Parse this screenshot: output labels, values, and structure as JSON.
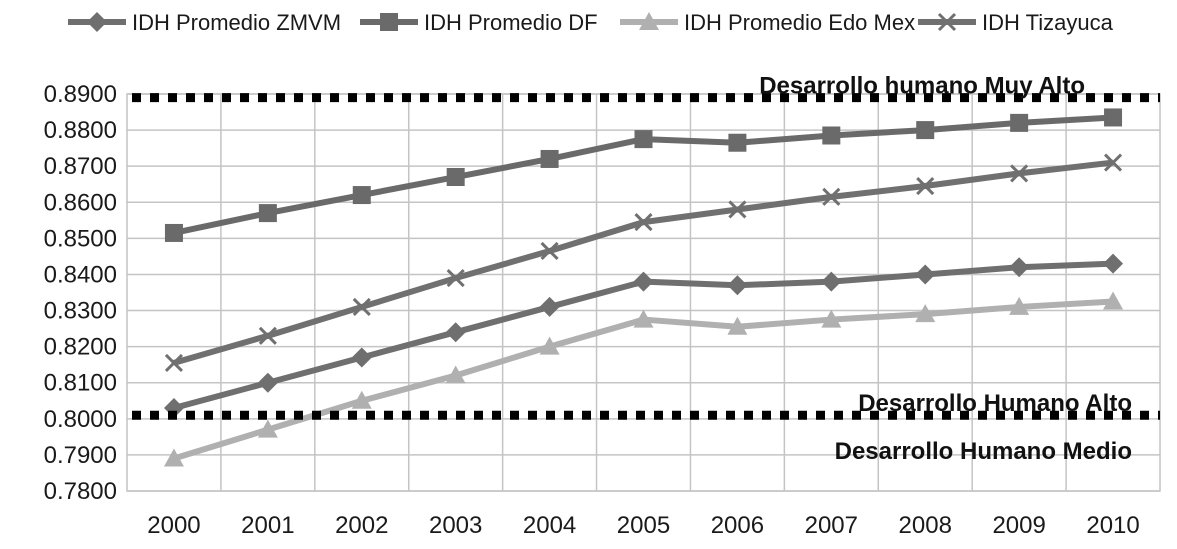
{
  "chart_data": {
    "type": "line",
    "title": "",
    "xlabel": "",
    "ylabel": "",
    "ylim": [
      0.78,
      0.89
    ],
    "y_ticks": [
      "0.8900",
      "0.8800",
      "0.8700",
      "0.8600",
      "0.8500",
      "0.8400",
      "0.8300",
      "0.8200",
      "0.8100",
      "0.8000",
      "0.7900",
      "0.7800"
    ],
    "categories": [
      "2000",
      "2001",
      "2002",
      "2003",
      "2004",
      "2005",
      "2006",
      "2007",
      "2008",
      "2009",
      "2010"
    ],
    "grid": true,
    "legend_position": "top",
    "series": [
      {
        "name": "IDH Promedio ZMVM",
        "marker": "diamond",
        "color": "#6f6f6f",
        "values": [
          0.803,
          0.81,
          0.817,
          0.824,
          0.831,
          0.838,
          0.837,
          0.838,
          0.84,
          0.842,
          0.843
        ]
      },
      {
        "name": "IDH Promedio DF",
        "marker": "square",
        "color": "#6a6a6a",
        "values": [
          0.8515,
          0.857,
          0.862,
          0.867,
          0.872,
          0.8775,
          0.8765,
          0.8785,
          0.88,
          0.882,
          0.8835
        ]
      },
      {
        "name": "IDH Promedio Edo Mex",
        "marker": "triangle",
        "color": "#b0b0b0",
        "values": [
          0.789,
          0.797,
          0.805,
          0.812,
          0.82,
          0.8275,
          0.8255,
          0.8275,
          0.829,
          0.831,
          0.8325
        ]
      },
      {
        "name": "IDH Tizayuca",
        "marker": "x",
        "color": "#707070",
        "values": [
          0.8155,
          0.823,
          0.831,
          0.839,
          0.8465,
          0.8545,
          0.858,
          0.8615,
          0.8645,
          0.868,
          0.871
        ]
      }
    ],
    "reference_lines": [
      {
        "value": 0.889,
        "labels": [
          "Desarrollo humano Muy Alto"
        ]
      },
      {
        "value": 0.801,
        "labels": [
          "Desarrollo Humano Alto",
          "Desarrollo Humano Medio"
        ]
      }
    ]
  }
}
